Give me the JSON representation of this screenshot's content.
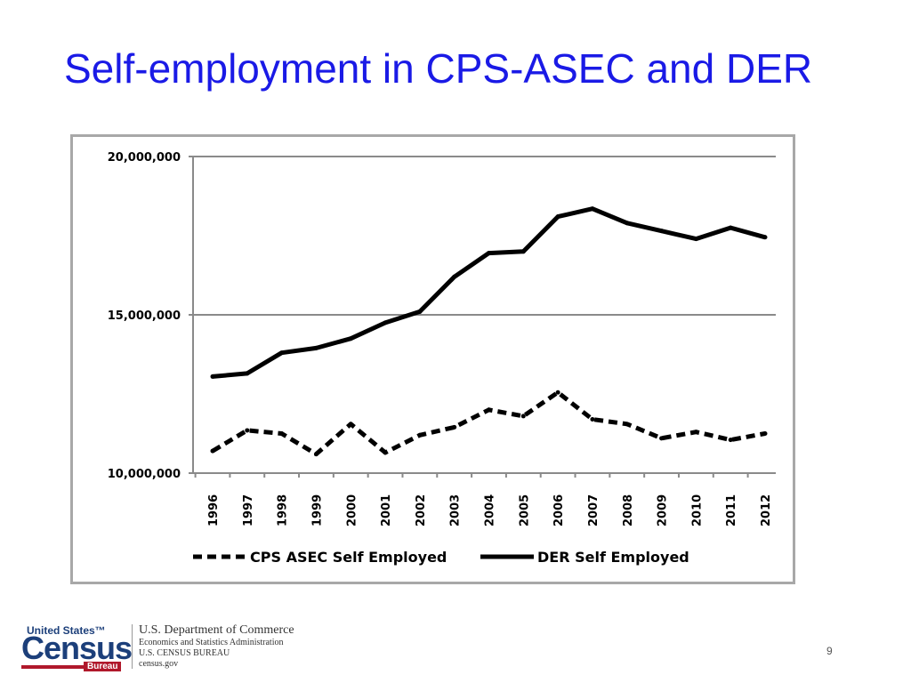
{
  "slide": {
    "title": "Self-employment in CPS-ASEC and DER",
    "page_number": "9"
  },
  "footer": {
    "logo_top": "United States™",
    "logo_main": "Census",
    "logo_bureau": "Bureau",
    "dept_name": "U.S. Department of Commerce",
    "dept_sub1": "Economics and Statistics Administration",
    "dept_sub2": "U.S. CENSUS BUREAU",
    "dept_sub3": "census.gov"
  },
  "chart_data": {
    "type": "line",
    "title": "",
    "xlabel": "",
    "ylabel": "",
    "categories": [
      "1996",
      "1997",
      "1998",
      "1999",
      "2000",
      "2001",
      "2002",
      "2003",
      "2004",
      "2005",
      "2006",
      "2007",
      "2008",
      "2009",
      "2010",
      "2011",
      "2012"
    ],
    "ylim": [
      10000000,
      20000000
    ],
    "yticks": [
      10000000,
      15000000,
      20000000
    ],
    "ytick_labels": [
      "10,000,000",
      "15,000,000",
      "20,000,000"
    ],
    "grid": true,
    "legend_position": "bottom",
    "series": [
      {
        "name": "CPS ASEC Self Employed",
        "style": "dashed",
        "color": "#000000",
        "values": [
          10700000,
          11350000,
          11250000,
          10600000,
          11550000,
          10650000,
          11200000,
          11450000,
          12000000,
          11800000,
          12550000,
          11700000,
          11550000,
          11100000,
          11300000,
          11050000,
          11250000
        ]
      },
      {
        "name": "DER Self Employed",
        "style": "solid",
        "color": "#000000",
        "values": [
          13050000,
          13150000,
          13800000,
          13950000,
          14250000,
          14750000,
          15100000,
          16200000,
          16950000,
          17000000,
          18100000,
          18350000,
          17900000,
          17650000,
          17400000,
          17750000,
          17450000
        ]
      }
    ]
  }
}
